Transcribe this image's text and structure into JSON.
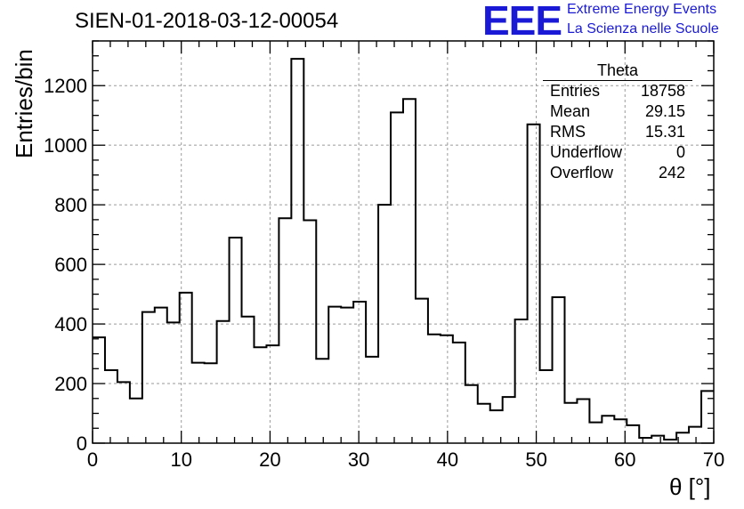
{
  "title": "SIEN-01-2018-03-12-00054",
  "logo": {
    "mark": "EEE",
    "line1": "Extreme Energy Events",
    "line2": "La Scienza nelle Scuole",
    "color": "#1a1ad6"
  },
  "stats": {
    "name": "Theta",
    "rows": [
      {
        "label": "Entries",
        "value": "18758"
      },
      {
        "label": "Mean",
        "value": "29.15"
      },
      {
        "label": "RMS",
        "value": "15.31"
      },
      {
        "label": "Underflow",
        "value": "0"
      },
      {
        "label": "Overflow",
        "value": "242"
      }
    ]
  },
  "chart_data": {
    "type": "histogram",
    "xlabel": "θ [°]",
    "ylabel": "Entries/bin",
    "xlim": [
      0,
      70
    ],
    "ylim": [
      0,
      1350
    ],
    "bin_width": 1.4,
    "bin_low_edges": [
      0,
      1.4,
      2.8,
      4.2,
      5.6,
      7.0,
      8.4,
      9.8,
      11.2,
      12.6,
      14.0,
      15.4,
      16.8,
      18.2,
      19.6,
      21.0,
      22.4,
      23.8,
      25.2,
      26.6,
      28.0,
      29.4,
      30.8,
      32.2,
      33.6,
      35.0,
      36.4,
      37.8,
      39.2,
      40.6,
      42.0,
      43.4,
      44.8,
      46.2,
      47.6,
      49.0,
      50.4,
      51.8,
      53.2,
      54.6,
      56.0,
      57.4,
      58.8,
      60.2,
      61.6,
      63.0,
      64.4,
      65.8,
      67.2,
      68.6
    ],
    "values": [
      355,
      245,
      205,
      150,
      440,
      455,
      405,
      505,
      270,
      268,
      410,
      690,
      425,
      322,
      328,
      755,
      1290,
      748,
      283,
      458,
      455,
      475,
      290,
      800,
      1110,
      1155,
      485,
      365,
      362,
      338,
      195,
      132,
      110,
      155,
      415,
      1070,
      245,
      490,
      135,
      148,
      70,
      92,
      80,
      60,
      18,
      25,
      12,
      35,
      55,
      175
    ],
    "xticks": [
      0,
      10,
      20,
      30,
      40,
      50,
      60,
      70
    ],
    "yticks": [
      0,
      200,
      400,
      600,
      800,
      1000,
      1200
    ],
    "grid": true,
    "line_color": "#000000",
    "grid_color": "#9a9a9a"
  }
}
